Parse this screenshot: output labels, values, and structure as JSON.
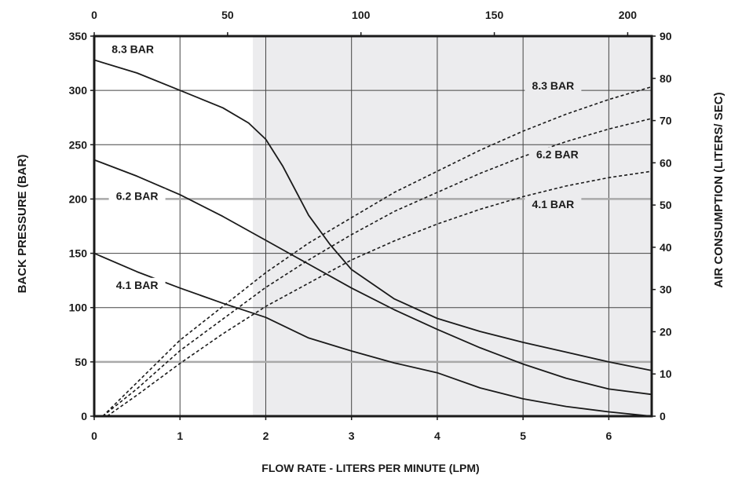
{
  "chart_data": {
    "type": "line",
    "xlabel": "FLOW RATE - LITERS PER MINUTE (LPM)",
    "ylabel": "BACK PRESSURE (BAR)",
    "y2label": "AIR CONSUMPTION (LITERS/ SEC)",
    "x_ticks": [
      "0",
      "1",
      "2",
      "3",
      "4",
      "5",
      "6"
    ],
    "x2_ticks": [
      "0",
      "50",
      "100",
      "150",
      "200"
    ],
    "y_ticks": [
      "0",
      "50",
      "100",
      "150",
      "200",
      "250",
      "300",
      "350"
    ],
    "y2_ticks": [
      "0",
      "10",
      "20",
      "30",
      "40",
      "50",
      "60",
      "70",
      "80",
      "90"
    ],
    "xlim": [
      0,
      6.5
    ],
    "x2lim": [
      0,
      209
    ],
    "ylim": [
      0,
      350
    ],
    "y2lim": [
      0,
      90
    ],
    "shaded_region_x": [
      1.85,
      6.5
    ],
    "grid": true,
    "pressure_series": [
      {
        "name": "8.3 BAR",
        "x": [
          0,
          0.5,
          1.0,
          1.5,
          1.8,
          2.0,
          2.2,
          2.5,
          2.75,
          3.0,
          3.5,
          4.0,
          4.5,
          5.0,
          5.5,
          6.0,
          6.5
        ],
        "y": [
          328,
          316,
          300,
          284,
          270,
          255,
          230,
          185,
          158,
          135,
          108,
          90,
          78,
          68,
          59,
          50,
          42
        ]
      },
      {
        "name": "6.2 BAR",
        "x": [
          0,
          0.5,
          1.0,
          1.5,
          2.0,
          2.5,
          3.0,
          3.5,
          4.0,
          4.5,
          5.0,
          5.5,
          6.0,
          6.5
        ],
        "y": [
          236,
          221,
          204,
          184,
          162,
          140,
          118,
          98,
          80,
          63,
          48,
          35,
          25,
          20
        ]
      },
      {
        "name": "4.1 BAR",
        "x": [
          0,
          0.5,
          1.0,
          1.5,
          2.0,
          2.5,
          3.0,
          3.5,
          4.0,
          4.5,
          5.0,
          5.5,
          6.0,
          6.5
        ],
        "y": [
          150,
          133,
          118,
          104,
          91,
          72,
          60,
          49,
          40,
          26,
          16,
          9,
          4,
          0
        ]
      }
    ],
    "air_series": [
      {
        "name": "8.3 BAR",
        "x": [
          0.1,
          0.5,
          1.0,
          1.5,
          2.0,
          2.5,
          3.0,
          3.5,
          4.0,
          4.5,
          5.0,
          5.5,
          6.0,
          6.5
        ],
        "y": [
          0,
          8,
          18,
          26,
          34,
          41,
          47,
          53,
          58,
          63,
          67.5,
          71.5,
          75,
          78
        ]
      },
      {
        "name": "6.2 BAR",
        "x": [
          0.1,
          0.5,
          1.0,
          1.5,
          2.0,
          2.5,
          3.0,
          3.5,
          4.0,
          4.5,
          5.0,
          5.5,
          6.0,
          6.5
        ],
        "y": [
          0,
          6.5,
          15.5,
          23,
          30.5,
          37,
          43,
          48.5,
          53,
          57.5,
          61.5,
          65,
          68,
          70.5
        ]
      },
      {
        "name": "4.1 BAR",
        "x": [
          0.15,
          0.5,
          1.0,
          1.5,
          2.0,
          2.5,
          3.0,
          3.5,
          4.0,
          4.5,
          5.0,
          5.5,
          6.0,
          6.5
        ],
        "y": [
          0,
          5,
          12.5,
          19.5,
          26,
          31.5,
          37,
          41.5,
          45.5,
          49,
          52,
          54.5,
          56.5,
          58
        ]
      }
    ]
  }
}
